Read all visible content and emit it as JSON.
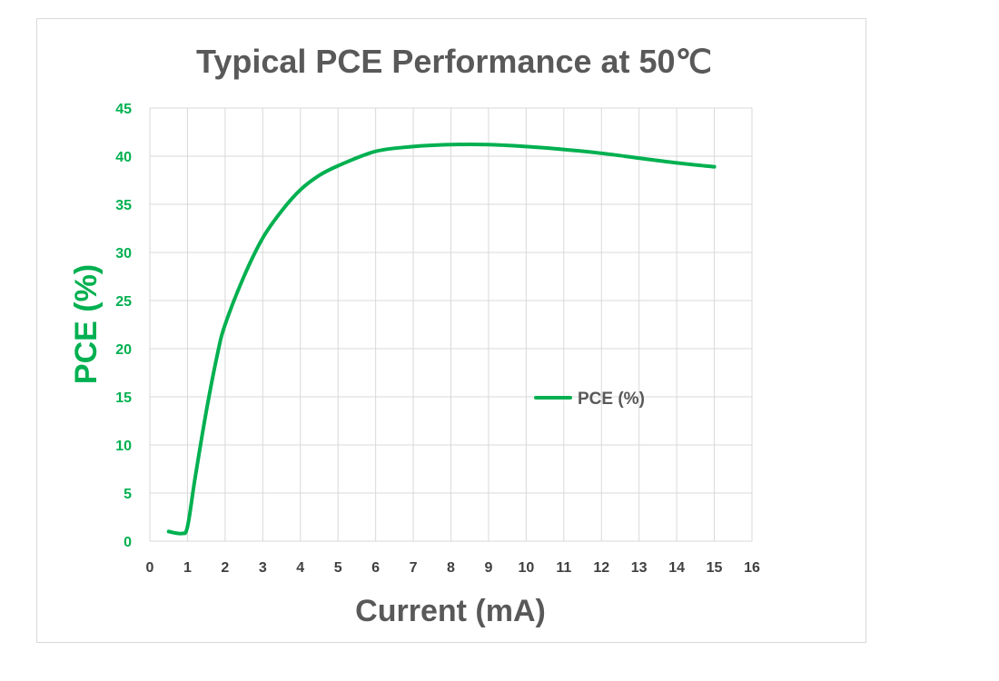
{
  "colors": {
    "series": "#00b050",
    "title": "#595959",
    "xtick": "#404040",
    "grid": "#d9d9d9",
    "border": "#d9d9d9",
    "ytick": "#00b050"
  },
  "chart_data": {
    "type": "line",
    "title": "Typical PCE Performance at 50℃",
    "xlabel": "Current (mA)",
    "ylabel": "PCE (%)",
    "xlim": [
      0,
      16
    ],
    "ylim": [
      0,
      45
    ],
    "xticks": [
      0,
      1,
      2,
      3,
      4,
      5,
      6,
      7,
      8,
      9,
      10,
      11,
      12,
      13,
      14,
      15,
      16
    ],
    "yticks": [
      0,
      5,
      10,
      15,
      20,
      25,
      30,
      35,
      40,
      45
    ],
    "grid": true,
    "legend": {
      "position": "right",
      "entries": [
        "PCE (%)"
      ]
    },
    "series": [
      {
        "name": "PCE (%)",
        "x": [
          0.5,
          0.85,
          1.0,
          1.2,
          1.5,
          1.8,
          2.0,
          2.5,
          3.0,
          3.5,
          4.0,
          4.5,
          5.0,
          6.0,
          7.0,
          8.0,
          9.0,
          10.0,
          11.0,
          12.0,
          13.0,
          14.0,
          15.0
        ],
        "y": [
          1.0,
          0.8,
          1.5,
          6.5,
          13.5,
          19.5,
          22.5,
          27.5,
          31.5,
          34.3,
          36.5,
          38.0,
          39.0,
          40.5,
          41.0,
          41.2,
          41.2,
          41.0,
          40.7,
          40.3,
          39.8,
          39.3,
          38.9
        ]
      }
    ]
  }
}
